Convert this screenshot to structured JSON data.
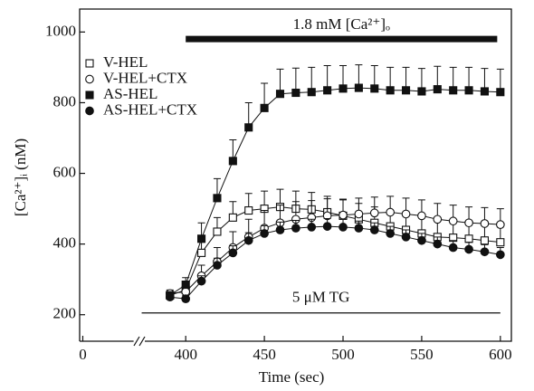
{
  "chart_data": {
    "type": "line",
    "x_label": "Time (sec)",
    "y_label": "[Ca²⁺]ᵢ (nM)",
    "x": [
      390,
      400,
      410,
      420,
      430,
      440,
      450,
      460,
      470,
      480,
      490,
      500,
      510,
      520,
      530,
      540,
      550,
      560,
      570,
      580,
      590,
      600
    ],
    "series": [
      {
        "name": "V-HEL",
        "marker": "square",
        "filled": false,
        "color": "#111111",
        "values": [
          255,
          270,
          375,
          435,
          475,
          495,
          500,
          505,
          500,
          498,
          490,
          480,
          470,
          460,
          450,
          440,
          430,
          420,
          418,
          415,
          410,
          405
        ],
        "errors": [
          10,
          15,
          30,
          40,
          45,
          48,
          50,
          50,
          50,
          48,
          45,
          45,
          45,
          45,
          45,
          45,
          45,
          45,
          45,
          45,
          45,
          45
        ]
      },
      {
        "name": "V-HEL+CTX",
        "marker": "circle",
        "filled": false,
        "color": "#111111",
        "values": [
          260,
          265,
          310,
          350,
          390,
          420,
          445,
          460,
          470,
          475,
          480,
          482,
          485,
          488,
          490,
          485,
          480,
          470,
          465,
          460,
          458,
          455
        ],
        "errors": [
          10,
          15,
          30,
          40,
          45,
          50,
          50,
          50,
          50,
          48,
          48,
          45,
          45,
          45,
          45,
          45,
          45,
          45,
          45,
          45,
          45,
          45
        ]
      },
      {
        "name": "AS-HEL",
        "marker": "square",
        "filled": true,
        "color": "#111111",
        "values": [
          255,
          285,
          415,
          530,
          635,
          730,
          785,
          825,
          828,
          830,
          835,
          840,
          842,
          840,
          835,
          835,
          832,
          838,
          835,
          835,
          832,
          830
        ],
        "errors": [
          10,
          20,
          45,
          55,
          60,
          70,
          70,
          70,
          70,
          70,
          70,
          65,
          65,
          65,
          65,
          65,
          65,
          65,
          65,
          65,
          65,
          65
        ]
      },
      {
        "name": "AS-HEL+CTX",
        "marker": "circle",
        "filled": true,
        "color": "#111111",
        "values": [
          250,
          245,
          295,
          340,
          375,
          410,
          430,
          440,
          445,
          448,
          450,
          448,
          445,
          440,
          430,
          420,
          410,
          400,
          390,
          385,
          378,
          370
        ],
        "errors": [
          8,
          10,
          15,
          20,
          20,
          22,
          22,
          22,
          22,
          22,
          22,
          22,
          20,
          20,
          20,
          20,
          20,
          20,
          20,
          20,
          20,
          20
        ]
      }
    ],
    "xlim": [
      -2,
      607
    ],
    "x_break": [
      30,
      374
    ],
    "xticks": [
      0,
      400,
      450,
      500,
      550,
      600
    ],
    "ylim": [
      125,
      1065
    ],
    "yticks": [
      200,
      400,
      600,
      800,
      1000
    ],
    "legend": "upper left",
    "annotations": [
      {
        "text": "1.8 mM [Ca²⁺]ₒ",
        "x": [
          400,
          598
        ],
        "y": 980,
        "width": "thick"
      },
      {
        "text": "5 μM TG",
        "x": [
          372,
          600
        ],
        "y": 205,
        "width": "thin"
      }
    ]
  }
}
